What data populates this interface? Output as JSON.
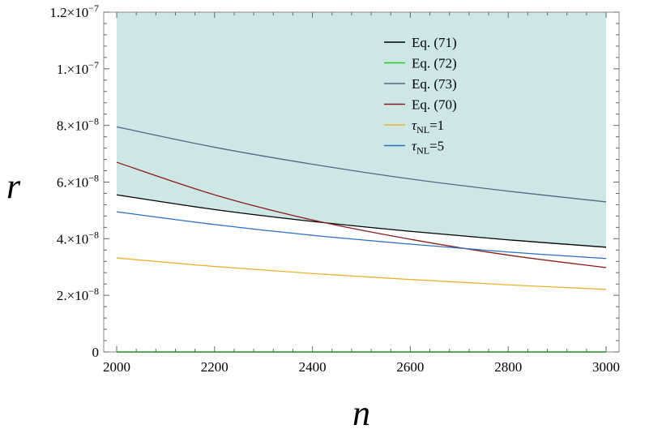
{
  "chart_data": {
    "type": "line",
    "title": "",
    "xlabel": "n",
    "ylabel": "r",
    "xlim": [
      2000,
      3000
    ],
    "ylim": [
      0,
      1.2e-07
    ],
    "grid": false,
    "legend_position": "top-right",
    "shaded_region": {
      "description": "allowed region above Eq. (71)",
      "color": "#cde6e6"
    },
    "x_ticks": [
      {
        "value": 2000,
        "label": "2000"
      },
      {
        "value": 2200,
        "label": "2200"
      },
      {
        "value": 2400,
        "label": "2400"
      },
      {
        "value": 2600,
        "label": "2600"
      },
      {
        "value": 2800,
        "label": "2800"
      },
      {
        "value": 3000,
        "label": "3000"
      }
    ],
    "y_ticks": [
      {
        "value": 0,
        "mant": "0",
        "exp": ""
      },
      {
        "value": 2e-08,
        "mant": "2.×10",
        "exp": "−8"
      },
      {
        "value": 4e-08,
        "mant": "4.×10",
        "exp": "−8"
      },
      {
        "value": 6e-08,
        "mant": "6.×10",
        "exp": "−8"
      },
      {
        "value": 8e-08,
        "mant": "8.×10",
        "exp": "−8"
      },
      {
        "value": 1e-07,
        "mant": "1.×10",
        "exp": "−7"
      },
      {
        "value": 1.2e-07,
        "mant": "1.2×10",
        "exp": "−7"
      }
    ],
    "x": [
      2000,
      2200,
      2400,
      2600,
      2800,
      3000
    ],
    "series": [
      {
        "label": "Eq. (71)",
        "color": "#000000",
        "values": [
          5.55e-08,
          5.03e-08,
          4.61e-08,
          4.26e-08,
          3.96e-08,
          3.7e-08
        ]
      },
      {
        "label": "Eq. (72)",
        "color": "#22cc22",
        "values": [
          0,
          0,
          0,
          0,
          0,
          0
        ]
      },
      {
        "label": "Eq. (73)",
        "color": "#506a80",
        "values": [
          7.95e-08,
          7.23e-08,
          6.63e-08,
          6.11e-08,
          5.68e-08,
          5.3e-08
        ]
      },
      {
        "label": "Eq. (70)",
        "color": "#8b1a1a",
        "values": [
          6.7e-08,
          5.55e-08,
          4.66e-08,
          3.98e-08,
          3.42e-08,
          2.98e-08
        ]
      },
      {
        "label": "τ",
        "label_sub": "NL",
        "label_suffix": "=1",
        "color": "#f0b030",
        "values": [
          3.32e-08,
          3.02e-08,
          2.77e-08,
          2.56e-08,
          2.37e-08,
          2.21e-08
        ]
      },
      {
        "label": "τ",
        "label_sub": "NL",
        "label_suffix": "=5",
        "color": "#2a6fc0",
        "values": [
          4.95e-08,
          4.5e-08,
          4.12e-08,
          3.81e-08,
          3.53e-08,
          3.3e-08
        ]
      }
    ]
  }
}
